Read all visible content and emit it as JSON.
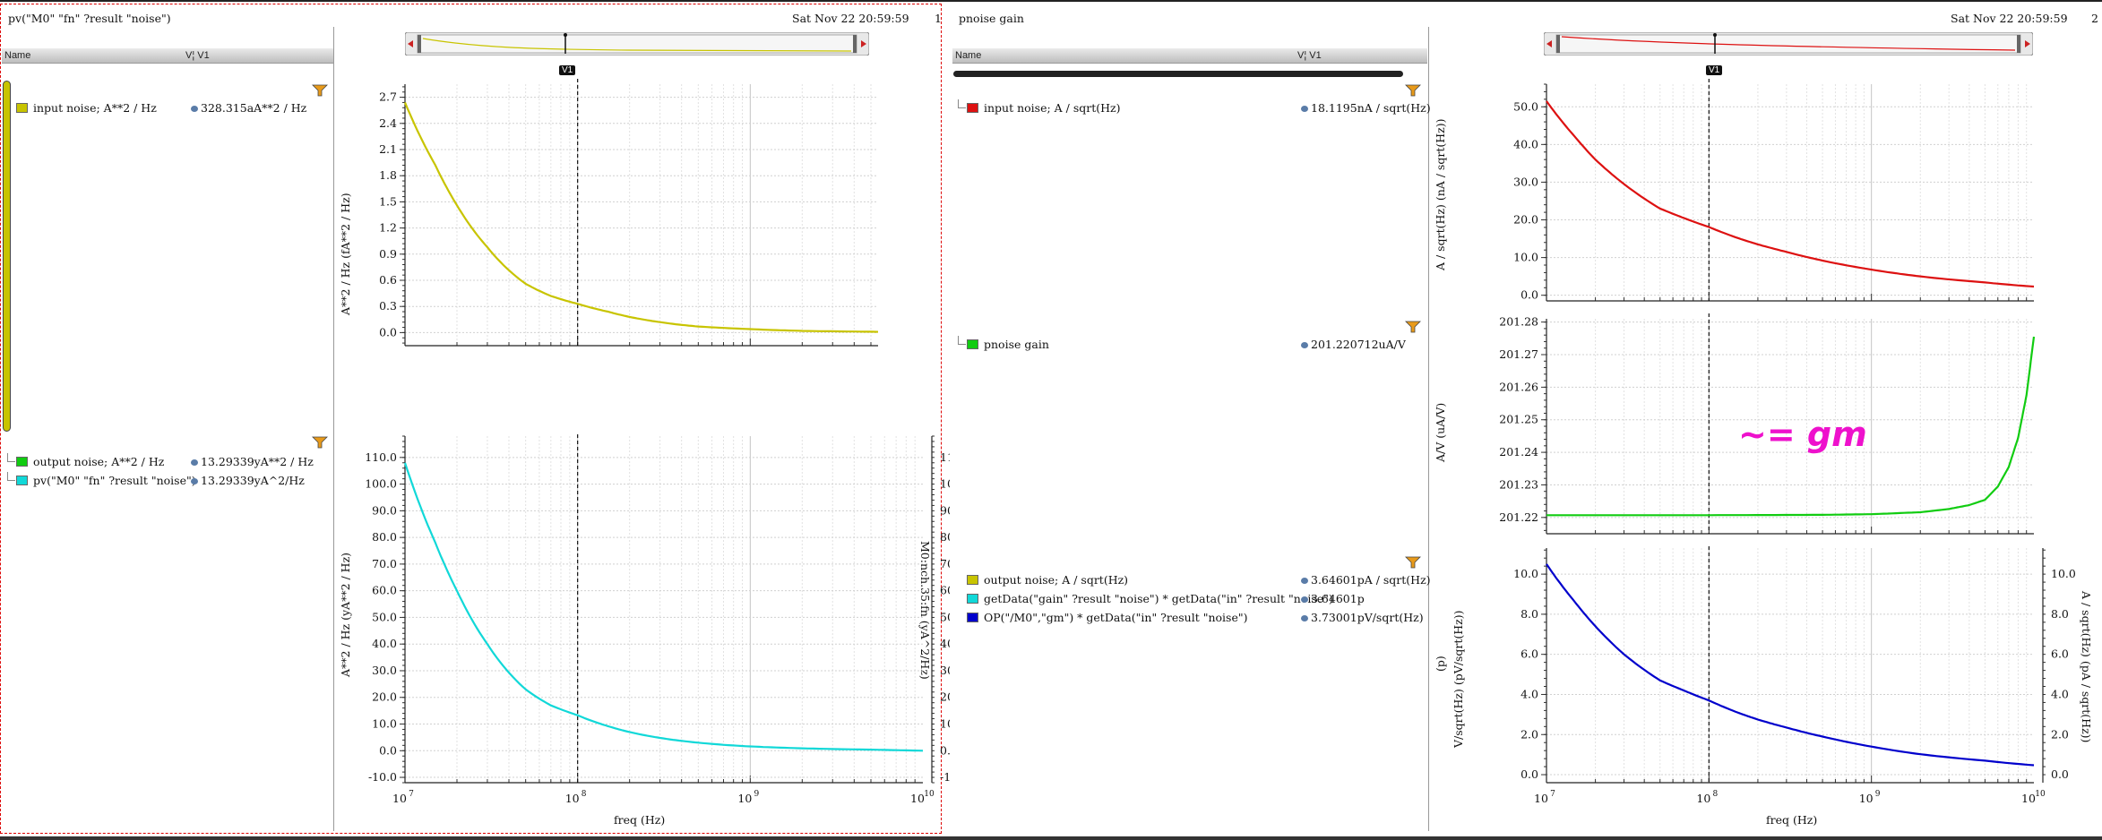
{
  "left": {
    "title": "pv(\"M0\" \"fn\" ?result \"noise\")",
    "date": "Sat Nov 22 20:59:59",
    "pane_number": "1",
    "header_name": "Name",
    "header_vis": "V¦ V1",
    "cursor_label": "V1",
    "signals_top": [
      {
        "name": "input noise; A**2 / Hz",
        "value": "328.315aA**2 / Hz",
        "color": "#c8c400"
      }
    ],
    "signals_bottom": [
      {
        "name": "output noise; A**2 / Hz",
        "value": "13.29339yA**2 / Hz",
        "color": "#11cc11"
      },
      {
        "name": "pv(\"M0\" \"fn\" ?result \"noise\")",
        "value": "13.29339yA^2/Hz",
        "color": "#11d8d8"
      }
    ]
  },
  "right": {
    "title": "pnoise gain",
    "date": "Sat Nov 22 20:59:59",
    "pane_number": "2",
    "header_name": "Name",
    "header_vis": "V¦ V1",
    "cursor_label": "V1",
    "signals_1": [
      {
        "name": "input noise; A / sqrt(Hz)",
        "value": "18.1195nA / sqrt(Hz)",
        "color": "#dd1111"
      }
    ],
    "signals_2": [
      {
        "name": "pnoise gain",
        "value": "201.220712uA/V",
        "color": "#11cc11"
      }
    ],
    "signals_3": [
      {
        "name": "output noise; A / sqrt(Hz)",
        "value": "3.64601pA / sqrt(Hz)",
        "color": "#c8c400"
      },
      {
        "name": "getData(\"gain\" ?result \"noise\") * getData(\"in\" ?result \"noise\")",
        "value": "3.64601p",
        "color": "#11d8d8"
      },
      {
        "name": "OP(\"/M0\",\"gm\") * getData(\"in\" ?result \"noise\")",
        "value": "3.73001pV/sqrt(Hz)",
        "color": "#0000cc"
      }
    ],
    "annotation": "~= gm"
  },
  "chart_data": [
    {
      "type": "line",
      "ylabel": "A**2 / Hz (fA**2 / Hz)",
      "xscale": "log",
      "xlim": [
        10000000.0,
        10000000000.0
      ],
      "ylim": [
        -0.15,
        2.85
      ],
      "yticks": [
        "0.0",
        "0.3",
        "0.6",
        "0.9",
        "1.2",
        "1.5",
        "1.8",
        "2.1",
        "2.4",
        "2.7"
      ],
      "grid": true,
      "series": [
        {
          "name": "input noise; A**2 / Hz",
          "color": "#c8c400",
          "x": [
            10000000.0,
            15000000.0,
            20000000.0,
            30000000.0,
            50000000.0,
            70000000.0,
            100000000.0,
            150000000.0,
            200000000.0,
            300000000.0,
            500000000.0,
            1000000000.0,
            2000000000.0,
            5000000000.0,
            10000000000.0
          ],
          "y": [
            2.64,
            1.92,
            1.46,
            0.98,
            0.56,
            0.42,
            0.33,
            0.24,
            0.18,
            0.12,
            0.07,
            0.04,
            0.02,
            0.01,
            0.0
          ]
        }
      ]
    },
    {
      "type": "line",
      "ylabel": "A**2 / Hz (yA**2 / Hz)",
      "ylabel_right": "M0:nch.35:fn (yA^2/Hz)",
      "xlabel": "freq (Hz)",
      "xscale": "log",
      "xlim": [
        10000000.0,
        10000000000.0
      ],
      "ylim": [
        -12,
        118
      ],
      "yticks": [
        "-10.0",
        "0.0",
        "10.0",
        "20.0",
        "30.0",
        "40.0",
        "50.0",
        "60.0",
        "70.0",
        "80.0",
        "90.0",
        "100.0",
        "110.0"
      ],
      "xticks": [
        "10^7",
        "10^8",
        "10^9",
        "10^10"
      ],
      "grid": true,
      "series": [
        {
          "name": "pv(\"M0\" \"fn\" ?result \"noise\")",
          "color": "#11d8d8",
          "x": [
            10000000.0,
            15000000.0,
            20000000.0,
            30000000.0,
            50000000.0,
            70000000.0,
            100000000.0,
            150000000.0,
            200000000.0,
            300000000.0,
            500000000.0,
            1000000000.0,
            2000000000.0,
            5000000000.0,
            10000000000.0
          ],
          "y": [
            108,
            78,
            60,
            40,
            23,
            17,
            13.3,
            9.2,
            7.0,
            4.8,
            3.0,
            1.6,
            0.9,
            0.4,
            0.0
          ]
        }
      ]
    },
    {
      "type": "line",
      "ylabel": "A / sqrt(Hz) (nA / sqrt(Hz))",
      "xscale": "log",
      "xlim": [
        10000000.0,
        10000000000.0
      ],
      "ylim": [
        -1.5,
        56
      ],
      "yticks": [
        "0.0",
        "10.0",
        "20.0",
        "30.0",
        "40.0",
        "50.0"
      ],
      "grid": true,
      "series": [
        {
          "name": "input noise; A / sqrt(Hz)",
          "color": "#dd1111",
          "x": [
            10000000.0,
            15000000.0,
            20000000.0,
            30000000.0,
            50000000.0,
            70000000.0,
            100000000.0,
            150000000.0,
            200000000.0,
            300000000.0,
            500000000.0,
            1000000000.0,
            2000000000.0,
            5000000000.0,
            10000000000.0
          ],
          "y": [
            51.5,
            42,
            36,
            29.5,
            23,
            20.5,
            18.1,
            15.2,
            13.5,
            11.5,
            9.2,
            6.8,
            5.0,
            3.4,
            2.3
          ]
        }
      ]
    },
    {
      "type": "line",
      "ylabel": "A/V (uA/V)",
      "xscale": "log",
      "xlim": [
        10000000.0,
        10000000000.0
      ],
      "ylim": [
        201.215,
        201.281
      ],
      "yticks": [
        "201.22",
        "201.23",
        "201.24",
        "201.25",
        "201.26",
        "201.27",
        "201.28"
      ],
      "grid": true,
      "series": [
        {
          "name": "pnoise gain",
          "color": "#11cc11",
          "x": [
            10000000.0,
            100000000.0,
            500000000.0,
            1000000000.0,
            2000000000.0,
            3000000000.0,
            4000000000.0,
            5000000000.0,
            6000000000.0,
            7000000000.0,
            8000000000.0,
            9000000000.0,
            10000000000.0
          ],
          "y": [
            201.2207,
            201.2207,
            201.2208,
            201.221,
            201.2216,
            201.2226,
            201.2238,
            201.2254,
            201.2295,
            201.2355,
            201.2445,
            201.2575,
            201.2755
          ]
        }
      ]
    },
    {
      "type": "line",
      "ylabel": "V/sqrt(Hz) (pV/sqrt(Hz))",
      "ylabel_outer": "(p)",
      "ylabel_right": "A / sqrt(Hz) (pA / sqrt(Hz))",
      "xlabel": "freq (Hz)",
      "xscale": "log",
      "xlim": [
        10000000.0,
        10000000000.0
      ],
      "ylim": [
        -0.4,
        11.3
      ],
      "yticks": [
        "0.0",
        "2.0",
        "4.0",
        "6.0",
        "8.0",
        "10.0"
      ],
      "xticks": [
        "10^7",
        "10^8",
        "10^9",
        "10^10"
      ],
      "grid": true,
      "series": [
        {
          "name": "OP(\"/M0\",\"gm\") * getData(\"in\" ?result \"noise\")",
          "color": "#0000cc",
          "x": [
            10000000.0,
            15000000.0,
            20000000.0,
            30000000.0,
            50000000.0,
            70000000.0,
            100000000.0,
            150000000.0,
            200000000.0,
            300000000.0,
            500000000.0,
            1000000000.0,
            2000000000.0,
            5000000000.0,
            10000000000.0
          ],
          "y": [
            10.5,
            8.6,
            7.4,
            6.0,
            4.7,
            4.2,
            3.7,
            3.1,
            2.75,
            2.35,
            1.9,
            1.4,
            1.02,
            0.7,
            0.47
          ]
        }
      ]
    }
  ]
}
